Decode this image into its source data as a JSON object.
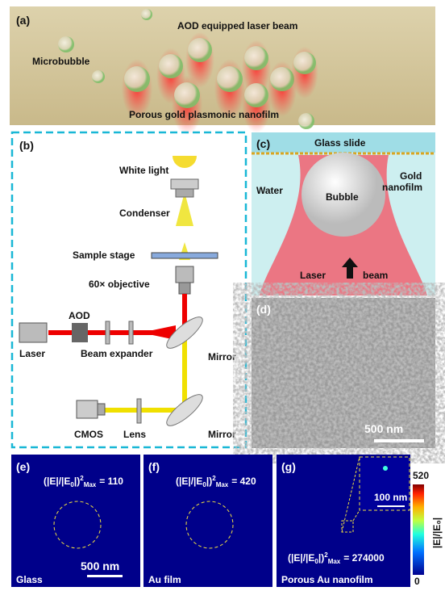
{
  "panel_a": {
    "label": "(a)",
    "beam": "AOD equipped laser beam",
    "bubble": "Microbubble",
    "film": "Porous gold plasmonic nanofilm"
  },
  "panel_b": {
    "label": "(b)",
    "white_light": "White light",
    "condenser": "Condenser",
    "stage": "Sample stage",
    "objective": "60× objective",
    "aod": "AOD",
    "laser": "Laser",
    "expander": "Beam expander",
    "mirror1": "Mirror",
    "mirror2": "Mirror",
    "cmos": "CMOS",
    "lens": "Lens"
  },
  "panel_c": {
    "label": "(c)",
    "glass": "Glass slide",
    "gold_1": "Gold",
    "gold_2": "nanofilm",
    "water": "Water",
    "bubble": "Bubble",
    "laser": "Laser",
    "beam": "beam"
  },
  "panel_d": {
    "label": "(d)",
    "scale": "500 nm"
  },
  "field": {
    "base": "(|E|/|E",
    "sub0": "0",
    "close": "|)",
    "sup": "2",
    "sub": "Max"
  },
  "panel_e": {
    "label": "(e)",
    "value": "= 110",
    "scale": "500 nm",
    "name": "Glass"
  },
  "panel_f": {
    "label": "(f)",
    "value": "= 420",
    "name": "Au film"
  },
  "panel_g": {
    "label": "(g)",
    "value": "= 274000",
    "inset_scale": "100 nm",
    "name": "Porous Au nanofilm"
  },
  "colorbar": {
    "max": "520",
    "min": "0",
    "label": "|E|/|E₀|"
  }
}
